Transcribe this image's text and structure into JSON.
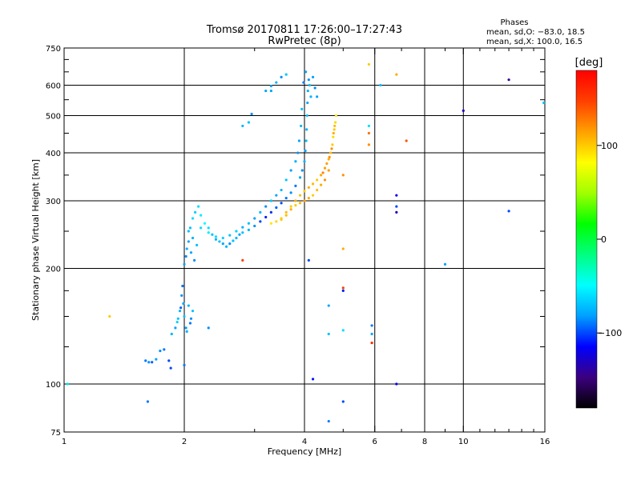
{
  "chart_data": {
    "type": "scatter",
    "title": "Tromsø 20170811 17:26:00–17:27:43",
    "subtitle": "RwPretec (8p)",
    "phases_header": "Phases",
    "phases_o": "mean, sd,O: −83.0, 18.5",
    "phases_x": "mean, sd,X: 100.0, 16.5",
    "xlabel": "Frequency [MHz]",
    "ylabel": "Stationary phase Virtual Height [km]",
    "xscale": "log",
    "yscale": "log",
    "xlim": [
      1,
      16
    ],
    "ylim": [
      75,
      750
    ],
    "xticks": [
      1,
      2,
      4,
      6,
      8,
      10,
      16
    ],
    "yticks": [
      75,
      100,
      200,
      300,
      400,
      500,
      600,
      750
    ],
    "xgrid": [
      2,
      4,
      6,
      8,
      10
    ],
    "ygrid": [
      100,
      200,
      300,
      400,
      500,
      600
    ],
    "colorbar": {
      "label": "[deg]",
      "range": [
        -180,
        180
      ],
      "ticks": [
        100,
        0,
        -100
      ],
      "colors": [
        "#000000",
        "#3c0080",
        "#0000ff",
        "#00a0ff",
        "#00ffff",
        "#00ff80",
        "#00ff00",
        "#a0ff00",
        "#ffff00",
        "#ffa000",
        "#ff4000",
        "#ff0000"
      ]
    },
    "series": [
      {
        "values": [
          [
            1.6,
            115,
            -90
          ],
          [
            1.63,
            114,
            -85
          ],
          [
            1.66,
            114,
            -95
          ],
          [
            1.7,
            116,
            -80
          ],
          [
            1.74,
            122,
            -85
          ],
          [
            1.78,
            123,
            -90
          ],
          [
            1.83,
            115,
            -100
          ],
          [
            1.86,
            135,
            -75
          ],
          [
            1.9,
            140,
            -80
          ],
          [
            1.93,
            148,
            -70
          ],
          [
            1.95,
            155,
            -75
          ],
          [
            1.97,
            170,
            -85
          ],
          [
            1.98,
            180,
            -90
          ],
          [
            2.0,
            150,
            -70
          ],
          [
            2.02,
            140,
            -80
          ],
          [
            2.05,
            160,
            -75
          ],
          [
            2.08,
            148,
            -85
          ],
          [
            2.1,
            155,
            -70
          ],
          [
            1.99,
            162,
            -80
          ],
          [
            2.03,
            137,
            -75
          ],
          [
            2.07,
            144,
            -90
          ],
          [
            1.92,
            145,
            -65
          ],
          [
            1.96,
            158,
            -95
          ],
          [
            2.0,
            112,
            -90
          ],
          [
            2.0,
            205,
            -80
          ],
          [
            2.02,
            215,
            -85
          ],
          [
            2.03,
            225,
            -75
          ],
          [
            2.05,
            235,
            -80
          ],
          [
            2.07,
            255,
            -70
          ],
          [
            2.1,
            270,
            -60
          ],
          [
            2.13,
            280,
            -65
          ],
          [
            2.17,
            290,
            -60
          ],
          [
            2.2,
            275,
            -55
          ],
          [
            2.25,
            262,
            -50
          ],
          [
            2.3,
            255,
            -60
          ],
          [
            2.35,
            245,
            -70
          ],
          [
            2.4,
            238,
            -75
          ],
          [
            2.45,
            235,
            -70
          ],
          [
            2.5,
            232,
            -80
          ],
          [
            2.55,
            228,
            -75
          ],
          [
            2.6,
            232,
            -85
          ],
          [
            2.65,
            236,
            -70
          ],
          [
            2.7,
            240,
            -75
          ],
          [
            2.75,
            245,
            -80
          ],
          [
            2.8,
            248,
            -70
          ],
          [
            2.9,
            252,
            -75
          ],
          [
            3.0,
            258,
            -85
          ],
          [
            3.1,
            265,
            -100
          ],
          [
            3.2,
            272,
            -110
          ],
          [
            3.3,
            280,
            -105
          ],
          [
            3.4,
            288,
            -95
          ],
          [
            3.5,
            296,
            -100
          ],
          [
            3.6,
            305,
            -90
          ],
          [
            3.7,
            315,
            -85
          ],
          [
            3.8,
            328,
            -90
          ],
          [
            3.9,
            345,
            -80
          ],
          [
            3.95,
            360,
            -85
          ],
          [
            4.0,
            380,
            -75
          ],
          [
            4.02,
            405,
            -80
          ],
          [
            4.04,
            430,
            -70
          ],
          [
            4.05,
            460,
            -75
          ],
          [
            4.06,
            500,
            -70
          ],
          [
            4.07,
            540,
            -80
          ],
          [
            4.08,
            580,
            -75
          ],
          [
            4.1,
            620,
            -85
          ],
          [
            3.98,
            610,
            -90
          ],
          [
            4.03,
            650,
            -80
          ],
          [
            4.12,
            600,
            -70
          ],
          [
            4.15,
            560,
            -75
          ],
          [
            4.2,
            630,
            -80
          ],
          [
            4.25,
            590,
            -85
          ],
          [
            4.3,
            560,
            -80
          ],
          [
            3.94,
            520,
            -70
          ],
          [
            3.92,
            470,
            -75
          ],
          [
            3.88,
            430,
            -80
          ],
          [
            3.85,
            400,
            -85
          ],
          [
            3.8,
            380,
            -75
          ],
          [
            3.7,
            360,
            -80
          ],
          [
            3.6,
            340,
            -70
          ],
          [
            3.5,
            320,
            -75
          ],
          [
            3.4,
            310,
            -80
          ],
          [
            3.3,
            300,
            -70
          ],
          [
            3.2,
            290,
            -85
          ],
          [
            3.1,
            280,
            -75
          ],
          [
            3.0,
            270,
            -80
          ],
          [
            2.9,
            262,
            -70
          ],
          [
            2.8,
            256,
            -75
          ],
          [
            2.7,
            250,
            -65
          ],
          [
            2.6,
            244,
            -70
          ],
          [
            2.5,
            240,
            -65
          ],
          [
            2.4,
            242,
            -60
          ],
          [
            2.3,
            248,
            -55
          ],
          [
            2.2,
            255,
            -60
          ],
          [
            2.15,
            230,
            -70
          ],
          [
            2.1,
            240,
            -75
          ],
          [
            2.05,
            250,
            -70
          ],
          [
            2.08,
            220,
            -80
          ],
          [
            2.12,
            210,
            -85
          ],
          [
            3.3,
            597,
            -80
          ],
          [
            3.4,
            610,
            -75
          ],
          [
            3.5,
            630,
            -85
          ],
          [
            3.6,
            640,
            -70
          ],
          [
            3.2,
            580,
            -80
          ],
          [
            2.8,
            470,
            -75
          ],
          [
            2.9,
            480,
            -70
          ],
          [
            2.95,
            505,
            -85
          ]
        ]
      },
      {
        "values": [
          [
            3.3,
            262,
            90
          ],
          [
            3.4,
            265,
            95
          ],
          [
            3.5,
            270,
            100
          ],
          [
            3.6,
            280,
            105
          ],
          [
            3.7,
            290,
            100
          ],
          [
            3.8,
            300,
            110
          ],
          [
            3.9,
            310,
            105
          ],
          [
            4.0,
            318,
            100
          ],
          [
            4.1,
            325,
            110
          ],
          [
            4.2,
            332,
            105
          ],
          [
            4.3,
            340,
            100
          ],
          [
            4.4,
            350,
            110
          ],
          [
            4.5,
            365,
            115
          ],
          [
            4.6,
            385,
            110
          ],
          [
            4.65,
            400,
            105
          ],
          [
            4.7,
            420,
            100
          ],
          [
            4.72,
            440,
            95
          ],
          [
            4.75,
            460,
            100
          ],
          [
            4.78,
            480,
            95
          ],
          [
            4.8,
            500,
            90
          ],
          [
            4.6,
            360,
            115
          ],
          [
            4.5,
            340,
            120
          ],
          [
            4.4,
            330,
            110
          ],
          [
            4.3,
            320,
            105
          ],
          [
            4.2,
            310,
            100
          ],
          [
            4.1,
            305,
            110
          ],
          [
            4.0,
            300,
            115
          ],
          [
            3.9,
            296,
            105
          ],
          [
            3.8,
            292,
            100
          ],
          [
            3.7,
            285,
            110
          ],
          [
            3.6,
            275,
            105
          ],
          [
            3.5,
            268,
            100
          ],
          [
            4.55,
            375,
            115
          ],
          [
            4.68,
            410,
            120
          ],
          [
            4.73,
            450,
            110
          ],
          [
            4.76,
            470,
            105
          ],
          [
            4.62,
            390,
            120
          ],
          [
            4.45,
            355,
            125
          ]
        ]
      },
      {
        "values": [
          [
            1.02,
            100,
            -60
          ],
          [
            1.3,
            150,
            100
          ],
          [
            1.62,
            90,
            -90
          ],
          [
            1.85,
            110,
            -100
          ],
          [
            2.3,
            140,
            -85
          ],
          [
            2.8,
            210,
            150
          ],
          [
            3.3,
            580,
            -80
          ],
          [
            4.1,
            210,
            -100
          ],
          [
            4.2,
            103,
            -110
          ],
          [
            4.6,
            80,
            -90
          ],
          [
            4.6,
            160,
            -80
          ],
          [
            4.6,
            135,
            -70
          ],
          [
            5.0,
            90,
            -100
          ],
          [
            5.0,
            175,
            -110
          ],
          [
            5.0,
            178,
            150
          ],
          [
            5.0,
            138,
            -60
          ],
          [
            5.0,
            225,
            110
          ],
          [
            5.0,
            350,
            120
          ],
          [
            5.9,
            142,
            -90
          ],
          [
            5.9,
            135,
            -80
          ],
          [
            5.9,
            128,
            160
          ],
          [
            5.8,
            470,
            -60
          ],
          [
            5.8,
            450,
            130
          ],
          [
            5.8,
            420,
            120
          ],
          [
            5.8,
            680,
            100
          ],
          [
            6.2,
            600,
            -70
          ],
          [
            6.8,
            310,
            -120
          ],
          [
            6.8,
            290,
            -100
          ],
          [
            6.8,
            280,
            -130
          ],
          [
            6.8,
            100,
            -120
          ],
          [
            6.8,
            640,
            110
          ],
          [
            7.2,
            430,
            140
          ],
          [
            9.0,
            205,
            -80
          ],
          [
            10.0,
            515,
            -130
          ],
          [
            13.0,
            620,
            -140
          ],
          [
            13.0,
            282,
            -100
          ],
          [
            15.9,
            540,
            -70
          ]
        ]
      }
    ]
  }
}
